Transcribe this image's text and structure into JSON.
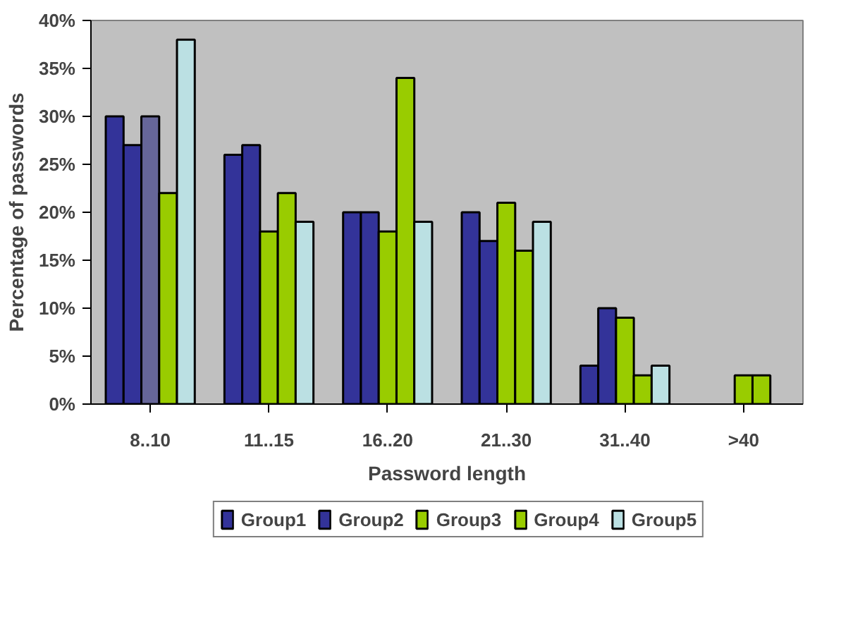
{
  "chart_data": {
    "type": "bar",
    "xlabel": "Password length",
    "ylabel": "Percentage of passwords",
    "categories": [
      "8..10",
      "11..15",
      "16..20",
      "21..30",
      "31..40",
      ">40"
    ],
    "series": [
      {
        "name": "Group1",
        "color": "#333399",
        "values": [
          30,
          26,
          20,
          20,
          4,
          null
        ]
      },
      {
        "name": "Group2",
        "color": "#333399",
        "values": [
          27,
          27,
          20,
          17,
          10,
          null
        ]
      },
      {
        "name": "Group3",
        "color": "#99cc00",
        "colors": [
          "#666699",
          "#99cc00",
          "#99cc00",
          "#99cc00",
          "#99cc00",
          "#99cc00"
        ],
        "values": [
          30,
          18,
          18,
          21,
          9,
          3
        ]
      },
      {
        "name": "Group4",
        "color": "#99cc00",
        "values": [
          22,
          22,
          34,
          16,
          3,
          3
        ]
      },
      {
        "name": "Group5",
        "color": "#bbe0e3",
        "values": [
          38,
          19,
          19,
          19,
          4,
          null
        ]
      }
    ],
    "ylim": [
      0,
      40
    ],
    "yticks": [
      {
        "value": 0,
        "label": "0%"
      },
      {
        "value": 5,
        "label": "5%"
      },
      {
        "value": 10,
        "label": "10%"
      },
      {
        "value": 15,
        "label": "15%"
      },
      {
        "value": 20,
        "label": "20%"
      },
      {
        "value": 25,
        "label": "25%"
      },
      {
        "value": 30,
        "label": "30%"
      },
      {
        "value": 35,
        "label": "35%"
      },
      {
        "value": 40,
        "label": "40%"
      }
    ],
    "grid": false,
    "legend": "bottom"
  }
}
